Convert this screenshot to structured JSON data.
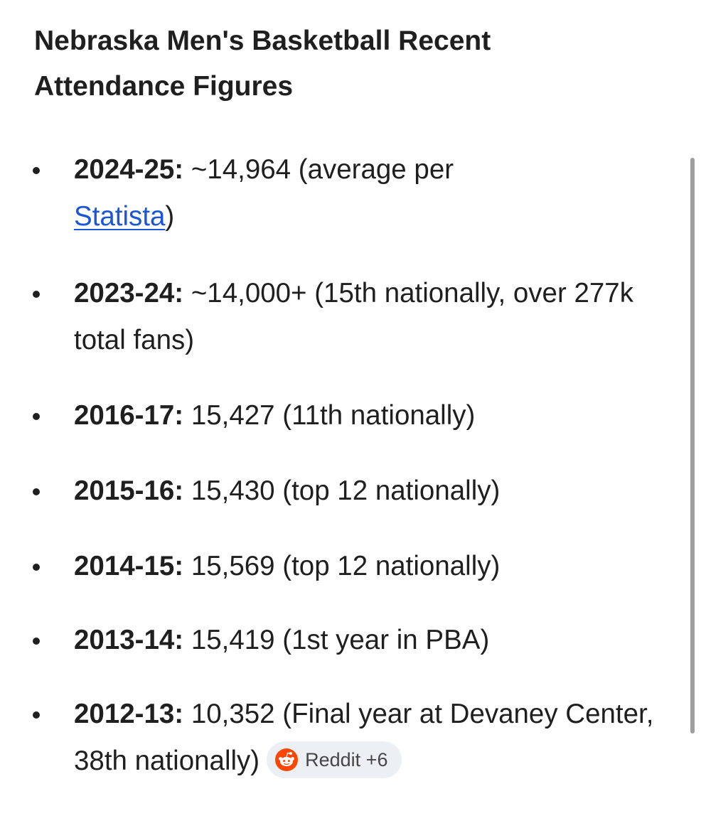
{
  "heading": {
    "line1": "Nebraska Men's Basketball Recent",
    "line2": "Attendance Figures"
  },
  "items": [
    {
      "year": "2024-25:",
      "text": " ~14,964 (average per ",
      "link": "Statista",
      "after": ")"
    },
    {
      "year": "2023-24:",
      "text": " ~14,000+ (15th nationally, over 277k total fans)"
    },
    {
      "year": "2016-17:",
      "text": " 15,427 (11th nationally)"
    },
    {
      "year": "2015-16:",
      "text": " 15,430 (top 12 nationally)"
    },
    {
      "year": "2014-15:",
      "text": " 15,569 (top 12 nationally)"
    },
    {
      "year": "2013-14:",
      "text": " 15,419 (1st year in PBA)"
    },
    {
      "year": "2012-13:",
      "text": " 10,352 (Final year at Devaney Center, 38th nationally)"
    }
  ],
  "source_chip": {
    "label": "Reddit +6",
    "icon": "reddit-icon"
  },
  "colors": {
    "text": "#1f1f1f",
    "link": "#1a56d6",
    "chip_bg": "#eceff4",
    "reddit": "#ff4500"
  }
}
